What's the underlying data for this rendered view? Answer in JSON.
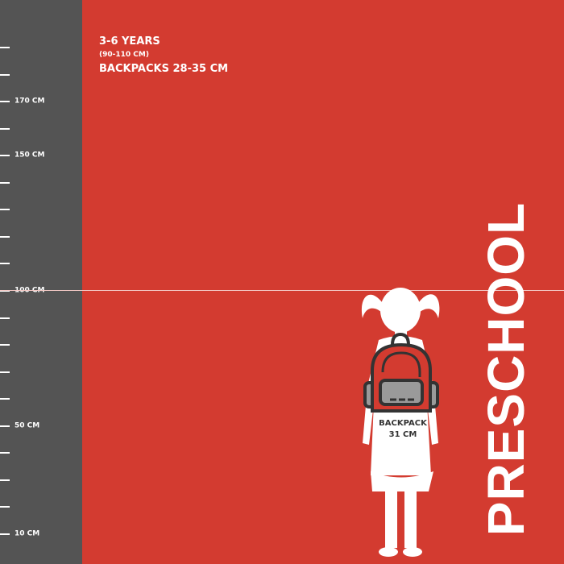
{
  "ruler": {
    "labels": [
      {
        "text": "170 CM",
        "tick": 2
      },
      {
        "text": "150 CM",
        "tick": 4
      },
      {
        "text": "100 CM",
        "tick": 9
      },
      {
        "text": "50 CM",
        "tick": 14
      },
      {
        "text": "10 CM",
        "tick": 18
      }
    ]
  },
  "info": {
    "age": "3-6 YEARS",
    "height_range": "(90-110 CM)",
    "backpacks": "BACKPACKS 28-35 CM"
  },
  "title": "PRESCHOOL",
  "backpack": {
    "label": "BACKPACK",
    "size": "31 CM"
  },
  "colors": {
    "background": "#d33b30",
    "ruler": "#545454",
    "backpack_body": "#d33b30",
    "backpack_pocket": "#9a9a9a",
    "outline": "#333333"
  }
}
